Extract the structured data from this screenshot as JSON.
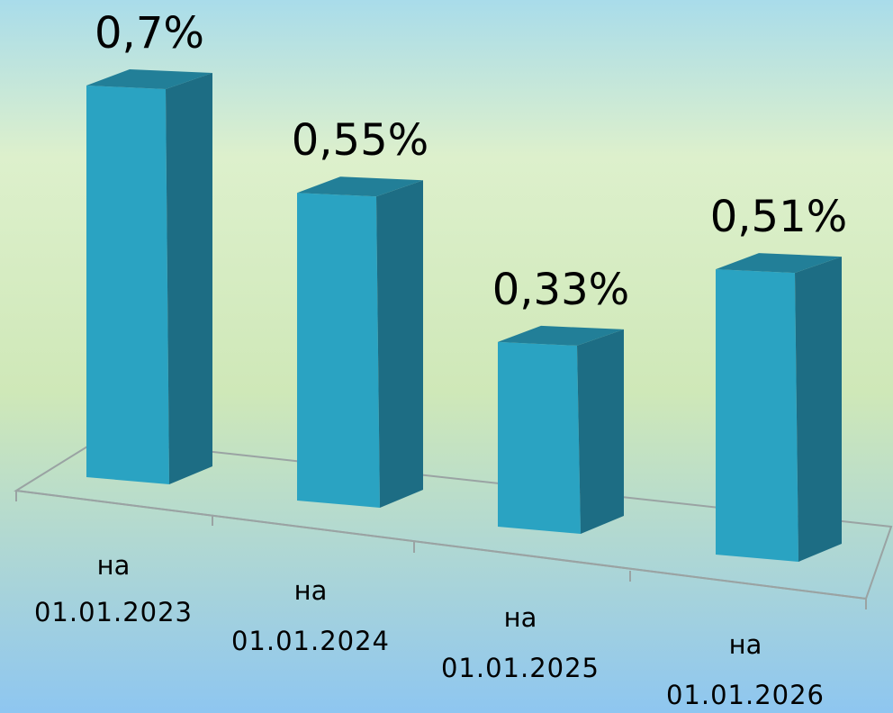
{
  "chart_data": {
    "type": "bar",
    "categories": [
      [
        "на",
        "01.01.2023"
      ],
      [
        "на",
        "01.01.2024"
      ],
      [
        "на",
        "01.01.2025"
      ],
      [
        "на",
        "01.01.2026"
      ]
    ],
    "values": [
      0.7,
      0.55,
      0.33,
      0.51
    ],
    "data_labels": [
      "0,7%",
      "0,55%",
      "0,33%",
      "0,51%"
    ],
    "ylim": [
      0,
      0.7
    ],
    "grid": false,
    "legend": "none",
    "colors": {
      "bar_front": "#2aa3c2",
      "bar_side": "#1d6d84",
      "bar_top": "#227f98",
      "floor_line": "#9aa3a3",
      "label_text": "#000000",
      "background_top": "#a9dcea",
      "background_mid": "#cfe8b8",
      "background_bottom": "#8ec6f0"
    }
  }
}
